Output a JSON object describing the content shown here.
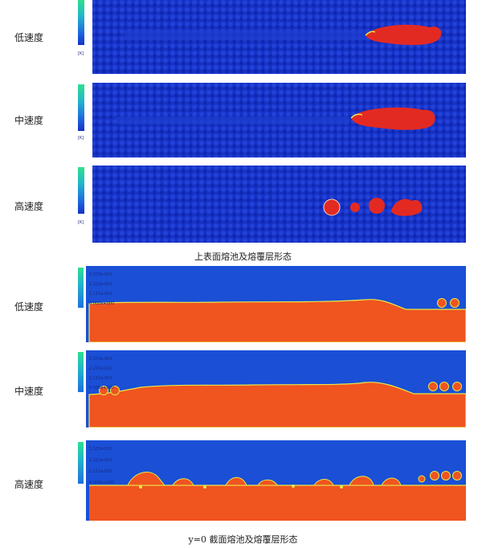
{
  "section_top": {
    "rows": [
      {
        "label": "低速度",
        "legend_unit": "[K]"
      },
      {
        "label": "中速度",
        "legend_unit": "[K]"
      },
      {
        "label": "高速度",
        "legend_unit": "[K]"
      }
    ],
    "caption": "上表面熔池及熔覆层形态"
  },
  "section_bottom": {
    "rows": [
      {
        "label": "低速度"
      },
      {
        "label": "中速度"
      },
      {
        "label": "高速度"
      }
    ],
    "legend_values": [
      "3.333e-001",
      "2.222e-001",
      "1.111e-001",
      "0.000e+000"
    ],
    "caption": "y=0 截面熔池及熔覆层形态"
  },
  "colors": {
    "powder_blue": "#1531c8",
    "substrate_blue": "#1a4fd6",
    "melt_red": "#e32a22",
    "section_orange": "#f0541f",
    "interface_yellow": "#e6e84a"
  }
}
